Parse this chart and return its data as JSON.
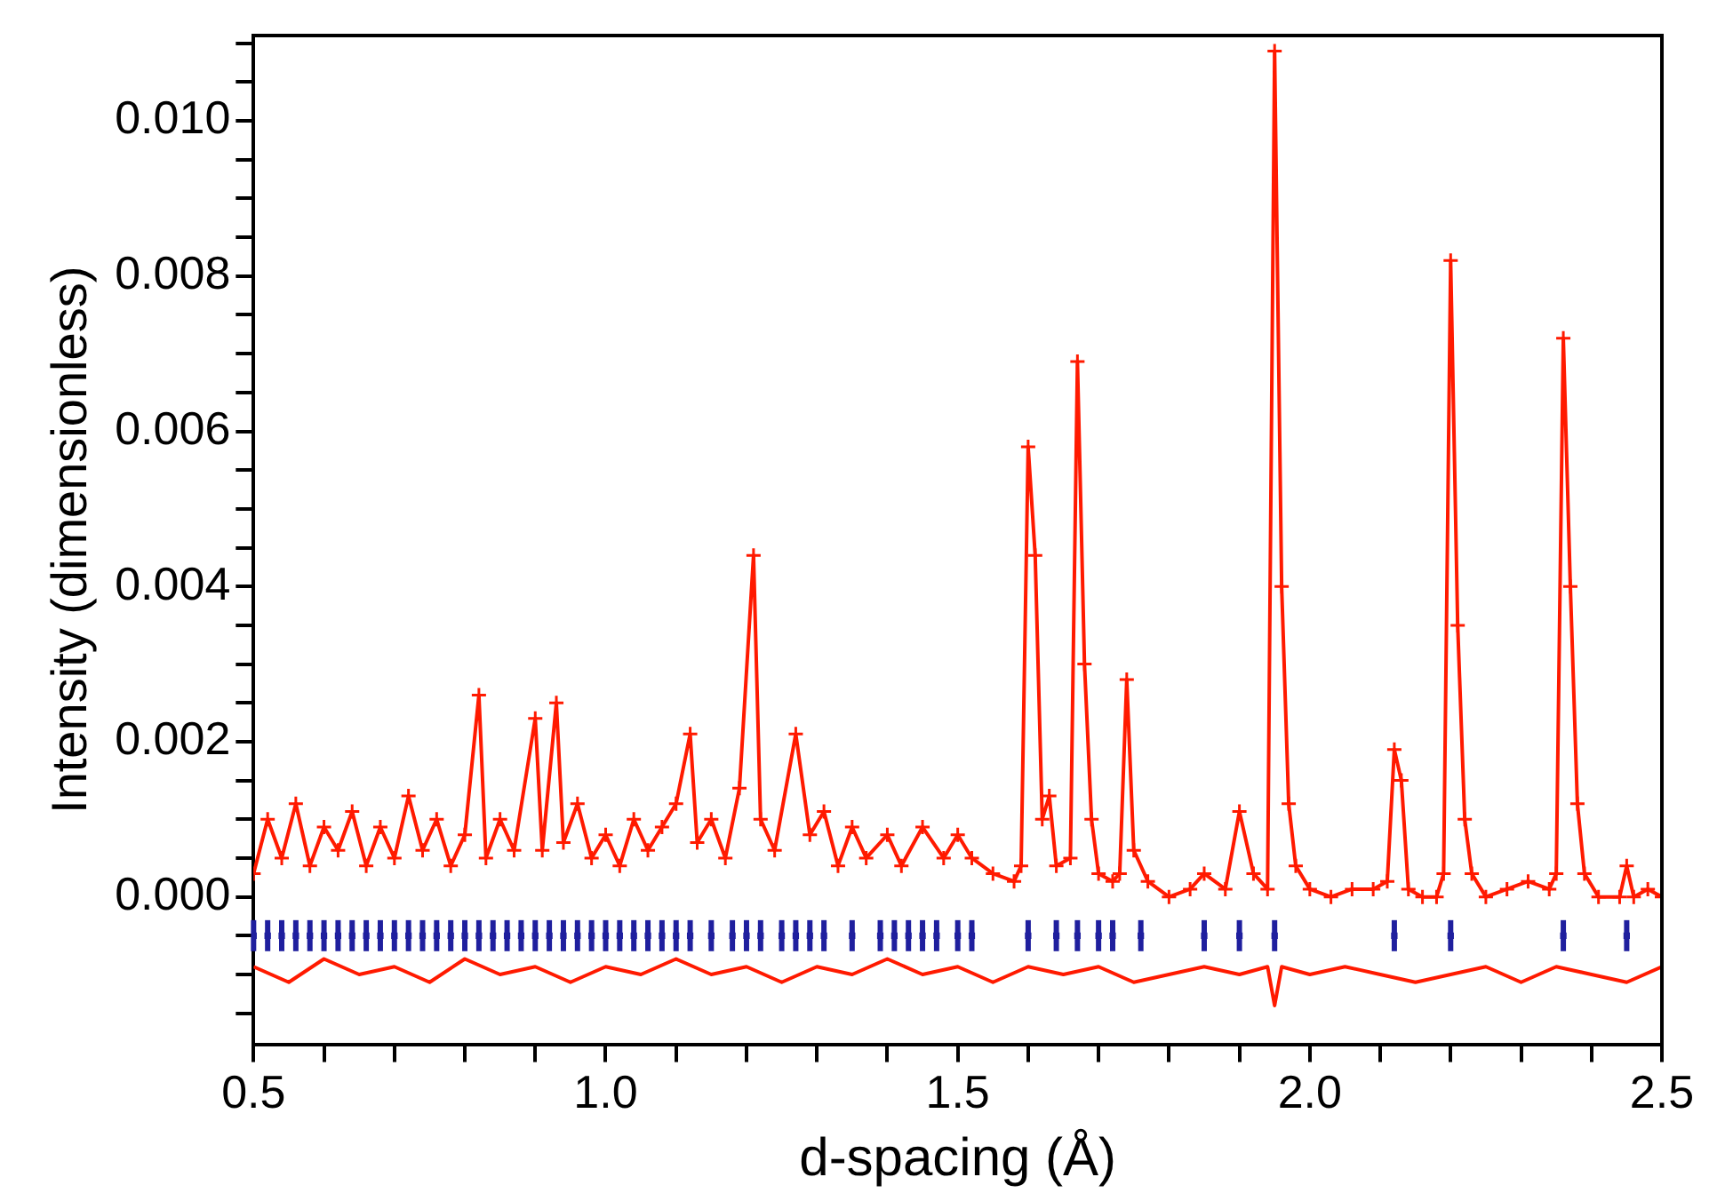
{
  "chart_data": {
    "type": "line",
    "xlabel": "d-spacing (Å)",
    "ylabel": "Intensity (dimensionless)",
    "xlim": [
      0.5,
      2.5
    ],
    "xticks": [
      {
        "value": 0.5,
        "label": "0.5"
      },
      {
        "value": 0.6,
        "label": null
      },
      {
        "value": 0.7,
        "label": null
      },
      {
        "value": 0.8,
        "label": null
      },
      {
        "value": 0.9,
        "label": null
      },
      {
        "value": 1.0,
        "label": "1.0"
      },
      {
        "value": 1.1,
        "label": null
      },
      {
        "value": 1.2,
        "label": null
      },
      {
        "value": 1.3,
        "label": null
      },
      {
        "value": 1.4,
        "label": null
      },
      {
        "value": 1.5,
        "label": "1.5"
      },
      {
        "value": 1.6,
        "label": null
      },
      {
        "value": 1.7,
        "label": null
      },
      {
        "value": 1.8,
        "label": null
      },
      {
        "value": 1.9,
        "label": null
      },
      {
        "value": 2.0,
        "label": "2.0"
      },
      {
        "value": 2.1,
        "label": null
      },
      {
        "value": 2.2,
        "label": null
      },
      {
        "value": 2.3,
        "label": null
      },
      {
        "value": 2.4,
        "label": null
      },
      {
        "value": 2.5,
        "label": "2.5"
      }
    ],
    "ylim": [
      -0.0019,
      0.0111
    ],
    "yticks": [
      {
        "value": -0.0015,
        "label": null
      },
      {
        "value": -0.001,
        "label": null
      },
      {
        "value": -0.0005,
        "label": null
      },
      {
        "value": 0,
        "label": "0.000"
      },
      {
        "value": 0.0005,
        "label": null
      },
      {
        "value": 0.001,
        "label": null
      },
      {
        "value": 0.0015,
        "label": null
      },
      {
        "value": 0.002,
        "label": "0.002"
      },
      {
        "value": 0.0025,
        "label": null
      },
      {
        "value": 0.003,
        "label": null
      },
      {
        "value": 0.0035,
        "label": null
      },
      {
        "value": 0.004,
        "label": "0.004"
      },
      {
        "value": 0.0045,
        "label": null
      },
      {
        "value": 0.005,
        "label": null
      },
      {
        "value": 0.0055,
        "label": null
      },
      {
        "value": 0.006,
        "label": "0.006"
      },
      {
        "value": 0.0065,
        "label": null
      },
      {
        "value": 0.007,
        "label": null
      },
      {
        "value": 0.0075,
        "label": null
      },
      {
        "value": 0.008,
        "label": "0.008"
      },
      {
        "value": 0.0085,
        "label": null
      },
      {
        "value": 0.009,
        "label": null
      },
      {
        "value": 0.0095,
        "label": null
      },
      {
        "value": 0.01,
        "label": "0.010"
      },
      {
        "value": 0.0105,
        "label": null
      },
      {
        "value": 0.011,
        "label": null
      }
    ],
    "grid": false,
    "legend": false,
    "series": [
      {
        "type": "line",
        "color": "#ff1a00",
        "marker": "cross",
        "x": [
          0.5,
          0.52,
          0.54,
          0.56,
          0.58,
          0.6,
          0.62,
          0.64,
          0.66,
          0.68,
          0.7,
          0.72,
          0.74,
          0.76,
          0.78,
          0.8,
          0.82,
          0.83,
          0.85,
          0.87,
          0.9,
          0.91,
          0.93,
          0.94,
          0.96,
          0.98,
          1.0,
          1.02,
          1.04,
          1.06,
          1.08,
          1.1,
          1.12,
          1.13,
          1.15,
          1.17,
          1.19,
          1.21,
          1.22,
          1.24,
          1.27,
          1.29,
          1.31,
          1.33,
          1.35,
          1.37,
          1.4,
          1.42,
          1.45,
          1.48,
          1.5,
          1.52,
          1.55,
          1.58,
          1.59,
          1.6,
          1.61,
          1.62,
          1.63,
          1.64,
          1.66,
          1.67,
          1.68,
          1.69,
          1.7,
          1.72,
          1.73,
          1.74,
          1.75,
          1.77,
          1.8,
          1.83,
          1.85,
          1.88,
          1.9,
          1.92,
          1.94,
          1.95,
          1.96,
          1.97,
          1.98,
          2.0,
          2.03,
          2.06,
          2.09,
          2.11,
          2.12,
          2.13,
          2.14,
          2.16,
          2.18,
          2.19,
          2.2,
          2.21,
          2.22,
          2.23,
          2.25,
          2.28,
          2.31,
          2.34,
          2.35,
          2.36,
          2.37,
          2.38,
          2.39,
          2.41,
          2.44,
          2.45,
          2.46,
          2.48,
          2.5
        ],
        "values": [
          0.0003,
          0.001,
          0.0005,
          0.0012,
          0.0004,
          0.0009,
          0.0006,
          0.0011,
          0.0004,
          0.0009,
          0.0005,
          0.0013,
          0.0006,
          0.001,
          0.0004,
          0.0008,
          0.0026,
          0.0005,
          0.001,
          0.0006,
          0.0023,
          0.0006,
          0.0025,
          0.0007,
          0.0012,
          0.0005,
          0.0008,
          0.0004,
          0.001,
          0.0006,
          0.0009,
          0.0012,
          0.0021,
          0.0007,
          0.001,
          0.0005,
          0.0014,
          0.0044,
          0.001,
          0.0006,
          0.0021,
          0.0008,
          0.0011,
          0.0004,
          0.0009,
          0.0005,
          0.0008,
          0.0004,
          0.0009,
          0.0005,
          0.0008,
          0.0005,
          0.0003,
          0.0002,
          0.0004,
          0.0058,
          0.0044,
          0.001,
          0.0013,
          0.0004,
          0.0005,
          0.0069,
          0.003,
          0.001,
          0.0003,
          0.0002,
          0.0003,
          0.0028,
          0.0006,
          0.0002,
          0,
          0.0001,
          0.0003,
          0.0001,
          0.0011,
          0.0003,
          0.0001,
          0.0109,
          0.004,
          0.0012,
          0.0004,
          0.0001,
          0,
          0.0001,
          0.0001,
          0.0002,
          0.0019,
          0.0015,
          0.0001,
          0,
          0,
          0.0003,
          0.0082,
          0.0035,
          0.001,
          0.0003,
          0,
          0.0001,
          0.0002,
          0.0001,
          0.0003,
          0.0072,
          0.004,
          0.0012,
          0.0003,
          0,
          0,
          0.0004,
          0,
          0.0001,
          0
        ]
      },
      {
        "type": "line",
        "color": "#ff1a00",
        "marker": "none",
        "x": [
          0.5,
          0.55,
          0.6,
          0.65,
          0.7,
          0.75,
          0.8,
          0.85,
          0.9,
          0.95,
          1.0,
          1.05,
          1.1,
          1.15,
          1.2,
          1.25,
          1.3,
          1.35,
          1.4,
          1.45,
          1.5,
          1.55,
          1.6,
          1.65,
          1.7,
          1.75,
          1.8,
          1.85,
          1.9,
          1.94,
          1.95,
          1.96,
          2.0,
          2.05,
          2.1,
          2.15,
          2.2,
          2.25,
          2.3,
          2.35,
          2.4,
          2.45,
          2.5
        ],
        "values": [
          -0.0009,
          -0.0011,
          -0.0008,
          -0.001,
          -0.0009,
          -0.0011,
          -0.0008,
          -0.001,
          -0.0009,
          -0.0011,
          -0.0009,
          -0.001,
          -0.0008,
          -0.001,
          -0.0009,
          -0.0011,
          -0.0009,
          -0.001,
          -0.0008,
          -0.001,
          -0.0009,
          -0.0011,
          -0.0009,
          -0.001,
          -0.0009,
          -0.0011,
          -0.001,
          -0.0009,
          -0.001,
          -0.0009,
          -0.0014,
          -0.0009,
          -0.001,
          -0.0009,
          -0.001,
          -0.0011,
          -0.001,
          -0.0009,
          -0.0011,
          -0.0009,
          -0.001,
          -0.0011,
          -0.0009
        ]
      },
      {
        "type": "scatter",
        "color": "#1f1f9e",
        "marker": "square",
        "x": [
          0.5,
          0.52,
          0.54,
          0.56,
          0.58,
          0.6,
          0.62,
          0.64,
          0.66,
          0.68,
          0.7,
          0.72,
          0.74,
          0.76,
          0.78,
          0.8,
          0.82,
          0.84,
          0.86,
          0.88,
          0.9,
          0.92,
          0.94,
          0.96,
          0.98,
          1.0,
          1.02,
          1.04,
          1.06,
          1.08,
          1.1,
          1.12,
          1.15,
          1.18,
          1.2,
          1.22,
          1.25,
          1.27,
          1.29,
          1.31,
          1.35,
          1.39,
          1.41,
          1.43,
          1.45,
          1.47,
          1.5,
          1.52,
          1.6,
          1.64,
          1.67,
          1.7,
          1.72,
          1.76,
          1.85,
          1.9,
          1.95,
          2.12,
          2.2,
          2.36,
          2.45
        ],
        "values": [
          -0.0005,
          -0.0005,
          -0.0005,
          -0.0005,
          -0.0005,
          -0.0005,
          -0.0005,
          -0.0005,
          -0.0005,
          -0.0005,
          -0.0005,
          -0.0005,
          -0.0005,
          -0.0005,
          -0.0005,
          -0.0005,
          -0.0005,
          -0.0005,
          -0.0005,
          -0.0005,
          -0.0005,
          -0.0005,
          -0.0005,
          -0.0005,
          -0.0005,
          -0.0005,
          -0.0005,
          -0.0005,
          -0.0005,
          -0.0005,
          -0.0005,
          -0.0005,
          -0.0005,
          -0.0005,
          -0.0005,
          -0.0005,
          -0.0005,
          -0.0005,
          -0.0005,
          -0.0005,
          -0.0005,
          -0.0005,
          -0.0005,
          -0.0005,
          -0.0005,
          -0.0005,
          -0.0005,
          -0.0005,
          -0.0005,
          -0.0005,
          -0.0005,
          -0.0005,
          -0.0005,
          -0.0005,
          -0.0005,
          -0.0005,
          -0.0005,
          -0.0005,
          -0.0005,
          -0.0005,
          -0.0005
        ],
        "errors": [
          0.0002,
          0.0002,
          0.0002,
          0.0002,
          0.0002,
          0.0002,
          0.0002,
          0.0002,
          0.0002,
          0.0002,
          0.0002,
          0.0002,
          0.0002,
          0.0002,
          0.0002,
          0.0002,
          0.0002,
          0.0002,
          0.0002,
          0.0002,
          0.0002,
          0.0002,
          0.0002,
          0.0002,
          0.0002,
          0.0002,
          0.0002,
          0.0002,
          0.0002,
          0.0002,
          0.0002,
          0.0002,
          0.0002,
          0.0002,
          0.0002,
          0.0002,
          0.0002,
          0.0002,
          0.0002,
          0.0002,
          0.0002,
          0.0002,
          0.0002,
          0.0002,
          0.0002,
          0.0002,
          0.0002,
          0.0002,
          0.0002,
          0.0002,
          0.0002,
          0.0002,
          0.0002,
          0.0002,
          0.0002,
          0.0002,
          0.0002,
          0.0002,
          0.0002,
          0.0002,
          0.0002
        ]
      }
    ]
  }
}
